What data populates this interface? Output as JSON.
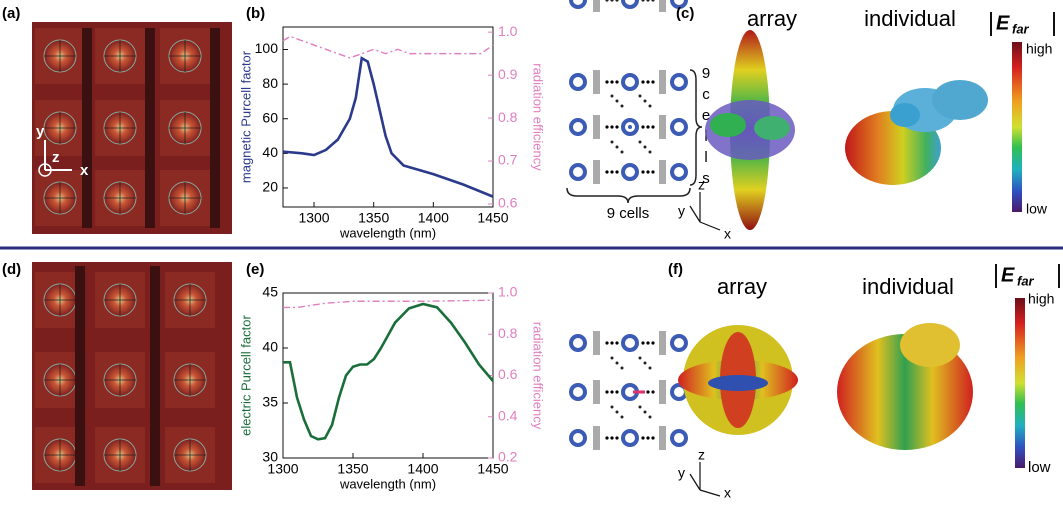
{
  "panel_labels": [
    "(a)",
    "(b)",
    "(c)",
    "(d)",
    "(e)",
    "(f)"
  ],
  "field_axes": [
    "y",
    "z",
    "x"
  ],
  "far_axes": [
    "z",
    "y",
    "x"
  ],
  "far_titles": [
    "array",
    "individual"
  ],
  "colorbar": {
    "symbol": "E",
    "subscript": "far",
    "high": "high",
    "low": "low"
  },
  "lattice": {
    "bottom": "9 cells",
    "side": [
      "9",
      "c",
      "e",
      "l",
      "l",
      "s"
    ]
  },
  "chart_data": [
    {
      "type": "line",
      "xlabel": "wavelength (nm)",
      "ylabel": "magnetic Purcell factor",
      "y2label": "radiation efficiency",
      "ylabel_color": "#2b3a8c",
      "y2label_color": "#e07fc0",
      "xlim": [
        1274,
        1450
      ],
      "xticks": [
        1300,
        1350,
        1400,
        1450
      ],
      "ylim": [
        9,
        113
      ],
      "yticks": [
        20,
        40,
        60,
        80,
        100
      ],
      "y2lim": [
        0.593,
        1.012
      ],
      "y2ticks": [
        0.6,
        0.7,
        0.8,
        0.9,
        {
          "value": 1,
          "label": "1.0"
        }
      ],
      "series": [
        {
          "color": "#2b3a8c",
          "dash": "solid",
          "x": [
            1274,
            1290,
            1300,
            1310,
            1320,
            1330,
            1335,
            1340,
            1345,
            1350,
            1355,
            1360,
            1365,
            1375,
            1400,
            1425,
            1450
          ],
          "values": [
            41,
            40,
            39,
            42,
            48,
            60,
            72,
            95,
            93,
            80,
            65,
            50,
            40,
            33,
            28,
            22,
            15
          ]
        },
        {
          "color": "#e07fc0",
          "dash": "dashdot",
          "axis": "y2",
          "x": [
            1274,
            1280,
            1290,
            1300,
            1310,
            1320,
            1330,
            1340,
            1350,
            1360,
            1370,
            1380,
            1400,
            1420,
            1440,
            1450
          ],
          "values": [
            0.98,
            0.99,
            0.98,
            0.97,
            0.96,
            0.95,
            0.94,
            0.95,
            0.96,
            0.95,
            0.96,
            0.95,
            0.95,
            0.95,
            0.95,
            0.97
          ]
        }
      ]
    },
    {
      "type": "line",
      "xlabel": "wavelength (nm)",
      "ylabel": "electric Purcell factor",
      "y2label": "radiation efficiency",
      "ylabel_color": "#1a6e3a",
      "y2label_color": "#e07fc0",
      "xlim": [
        1300,
        1450
      ],
      "xticks": [
        1300,
        1350,
        1400,
        1450
      ],
      "ylim": [
        30,
        45
      ],
      "yticks": [
        30,
        35,
        40,
        45
      ],
      "y2lim": [
        0.2,
        1.0
      ],
      "y2ticks": [
        0.2,
        0.4,
        0.6,
        0.8,
        {
          "value": 1,
          "label": "1.0"
        }
      ],
      "series": [
        {
          "color": "#1a6e3a",
          "dash": "solid",
          "x": [
            1300,
            1305,
            1310,
            1315,
            1320,
            1325,
            1330,
            1335,
            1340,
            1345,
            1350,
            1355,
            1360,
            1365,
            1370,
            1380,
            1390,
            1400,
            1410,
            1420,
            1430,
            1440,
            1450
          ],
          "values": [
            38.7,
            38.7,
            35.5,
            33.5,
            32,
            31.7,
            31.8,
            33,
            35.5,
            37.5,
            38.3,
            38.5,
            38.5,
            39,
            40,
            42.3,
            43.6,
            44,
            43.7,
            42.3,
            40.5,
            38.5,
            37
          ]
        },
        {
          "color": "#e07fc0",
          "dash": "dashdot",
          "axis": "y2",
          "x": [
            1300,
            1310,
            1320,
            1330,
            1340,
            1350,
            1400,
            1450
          ],
          "values": [
            0.93,
            0.93,
            0.94,
            0.95,
            0.955,
            0.96,
            0.96,
            0.965
          ]
        }
      ]
    }
  ]
}
